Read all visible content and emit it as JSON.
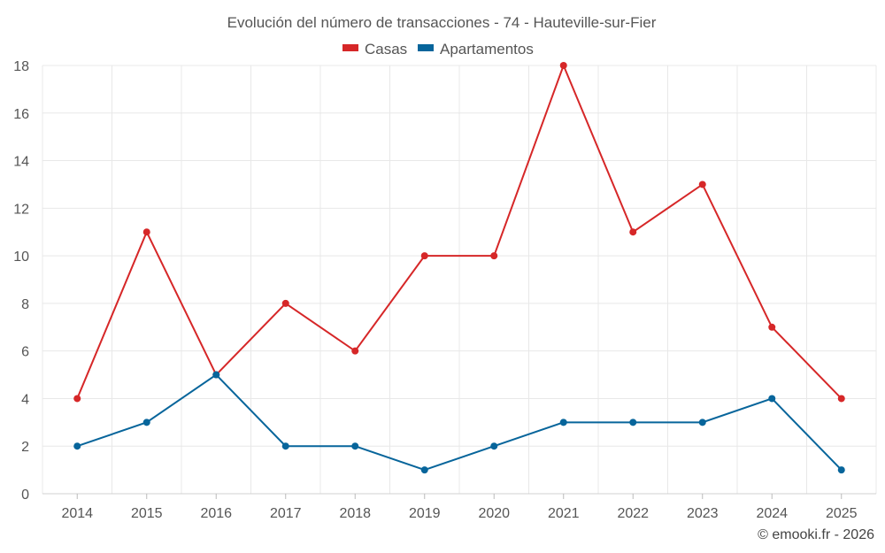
{
  "chart_data": {
    "type": "line",
    "title": "Evolución del número de transacciones - 74 - Hauteville-sur-Fier",
    "categories": [
      "2014",
      "2015",
      "2016",
      "2017",
      "2018",
      "2019",
      "2020",
      "2021",
      "2022",
      "2023",
      "2024",
      "2025"
    ],
    "series": [
      {
        "name": "Casas",
        "color": "#d62728",
        "values": [
          4,
          11,
          5,
          8,
          6,
          10,
          10,
          18,
          11,
          13,
          7,
          4
        ]
      },
      {
        "name": "Apartamentos",
        "color": "#07659b",
        "values": [
          2,
          3,
          5,
          2,
          2,
          1,
          2,
          3,
          3,
          3,
          4,
          1
        ]
      }
    ],
    "ylim": [
      0,
      18
    ],
    "yticks": [
      "0",
      "2",
      "4",
      "6",
      "8",
      "10",
      "12",
      "14",
      "16",
      "18"
    ],
    "legend_position": "top-center",
    "grid": true
  },
  "credit": "© emooki.fr - 2026"
}
